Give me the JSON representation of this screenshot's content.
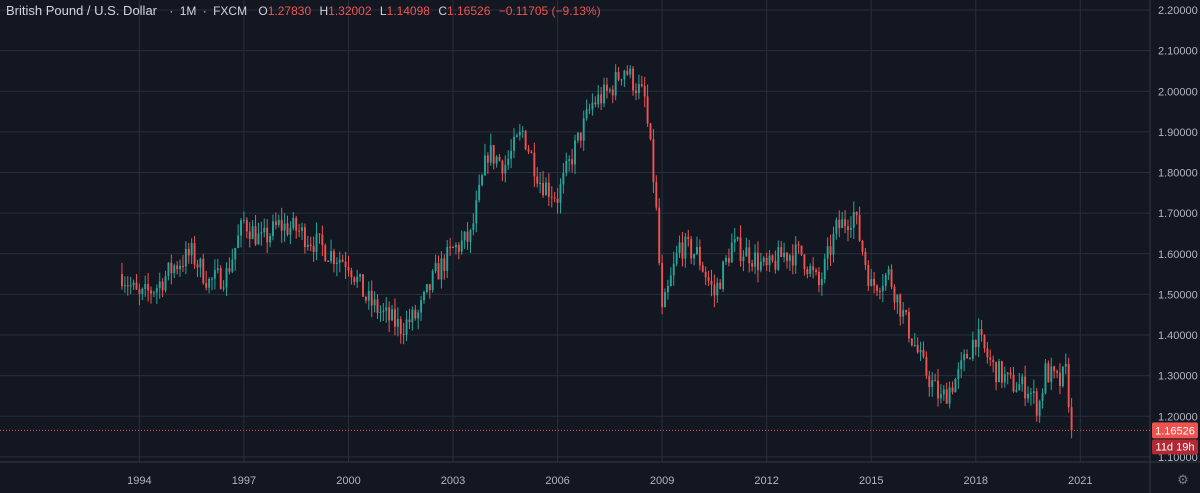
{
  "header": {
    "symbol": "British Pound / U.S. Dollar",
    "sep": "·",
    "interval": "1M",
    "exchange": "FXCM",
    "ohlc": [
      {
        "label": "O",
        "value": "1.27830"
      },
      {
        "label": "H",
        "value": "1.32002"
      },
      {
        "label": "L",
        "value": "1.14098"
      },
      {
        "label": "C",
        "value": "1.16526"
      }
    ],
    "change": "−0.11705 (−9.13%)"
  },
  "colors": {
    "up": "#26a69a",
    "down": "#ef5350",
    "bg": "#131722",
    "grid": "#2a2e39",
    "text": "#b2b5be"
  },
  "price_label": {
    "value": "1.16526",
    "countdown": "11d 19h"
  },
  "icons": {
    "settings": "gear-icon"
  },
  "chart_data": {
    "type": "candlestick",
    "y_ticks": [
      "1.10000",
      "1.20000",
      "1.30000",
      "1.40000",
      "1.50000",
      "1.60000",
      "1.70000",
      "1.80000",
      "1.90000",
      "2.00000",
      "2.10000",
      "2.20000"
    ],
    "ylim": [
      1.0875,
      2.2
    ],
    "x_ticks": [
      "1994",
      "1997",
      "2000",
      "2003",
      "2006",
      "2009",
      "2012",
      "2015",
      "2018",
      "2021"
    ],
    "xlim": [
      1990.0,
      2023.0
    ],
    "last_close": 1.16526,
    "closes": [
      {
        "t": 1993.5,
        "c": 1.55
      },
      {
        "t": 1994.0,
        "c": 1.49
      },
      {
        "t": 1994.5,
        "c": 1.52
      },
      {
        "t": 1995.0,
        "c": 1.57
      },
      {
        "t": 1995.5,
        "c": 1.6
      },
      {
        "t": 1996.0,
        "c": 1.53
      },
      {
        "t": 1996.5,
        "c": 1.55
      },
      {
        "t": 1997.0,
        "c": 1.68
      },
      {
        "t": 1997.5,
        "c": 1.63
      },
      {
        "t": 1998.0,
        "c": 1.67
      },
      {
        "t": 1998.5,
        "c": 1.66
      },
      {
        "t": 1999.0,
        "c": 1.63
      },
      {
        "t": 1999.5,
        "c": 1.6
      },
      {
        "t": 2000.0,
        "c": 1.58
      },
      {
        "t": 2000.5,
        "c": 1.49
      },
      {
        "t": 2001.0,
        "c": 1.45
      },
      {
        "t": 2001.5,
        "c": 1.42
      },
      {
        "t": 2002.0,
        "c": 1.45
      },
      {
        "t": 2002.5,
        "c": 1.55
      },
      {
        "t": 2003.0,
        "c": 1.61
      },
      {
        "t": 2003.5,
        "c": 1.64
      },
      {
        "t": 2004.0,
        "c": 1.85
      },
      {
        "t": 2004.5,
        "c": 1.82
      },
      {
        "t": 2005.0,
        "c": 1.9
      },
      {
        "t": 2005.5,
        "c": 1.78
      },
      {
        "t": 2006.0,
        "c": 1.74
      },
      {
        "t": 2006.5,
        "c": 1.86
      },
      {
        "t": 2007.0,
        "c": 1.97
      },
      {
        "t": 2007.5,
        "c": 2.0
      },
      {
        "t": 2007.9,
        "c": 2.06
      },
      {
        "t": 2008.5,
        "c": 1.98
      },
      {
        "t": 2008.8,
        "c": 1.75
      },
      {
        "t": 2009.0,
        "c": 1.45
      },
      {
        "t": 2009.5,
        "c": 1.62
      },
      {
        "t": 2010.0,
        "c": 1.6
      },
      {
        "t": 2010.5,
        "c": 1.5
      },
      {
        "t": 2011.0,
        "c": 1.62
      },
      {
        "t": 2011.5,
        "c": 1.6
      },
      {
        "t": 2012.0,
        "c": 1.56
      },
      {
        "t": 2012.5,
        "c": 1.6
      },
      {
        "t": 2013.0,
        "c": 1.6
      },
      {
        "t": 2013.5,
        "c": 1.52
      },
      {
        "t": 2014.0,
        "c": 1.66
      },
      {
        "t": 2014.5,
        "c": 1.7
      },
      {
        "t": 2015.0,
        "c": 1.52
      },
      {
        "t": 2015.5,
        "c": 1.55
      },
      {
        "t": 2016.0,
        "c": 1.43
      },
      {
        "t": 2016.5,
        "c": 1.32
      },
      {
        "t": 2017.0,
        "c": 1.24
      },
      {
        "t": 2017.5,
        "c": 1.3
      },
      {
        "t": 2018.0,
        "c": 1.4
      },
      {
        "t": 2018.5,
        "c": 1.32
      },
      {
        "t": 2019.0,
        "c": 1.28
      },
      {
        "t": 2019.5,
        "c": 1.27
      },
      {
        "t": 2019.8,
        "c": 1.22
      },
      {
        "t": 2020.0,
        "c": 1.31
      },
      {
        "t": 2020.4,
        "c": 1.28
      },
      {
        "t": 2020.6,
        "c": 1.31
      },
      {
        "t": 2020.75,
        "c": 1.165
      }
    ]
  }
}
